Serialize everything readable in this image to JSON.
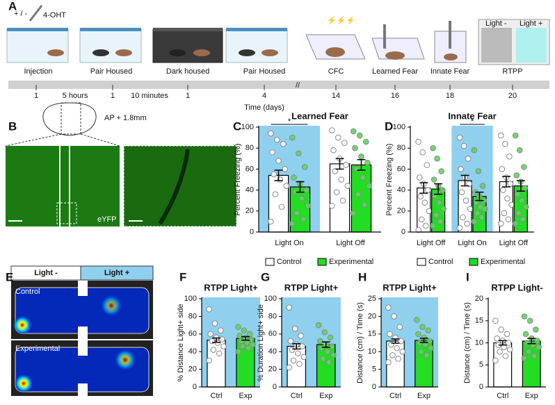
{
  "panel_labels": [
    "A",
    "B",
    "C",
    "D",
    "E",
    "F",
    "G",
    "H",
    "I"
  ],
  "timeline": {
    "injection_label": "+ / -",
    "drug": "4-OHT",
    "stages": [
      "Injection",
      "Pair Housed",
      "Dark housed",
      "Pair Housed",
      "CFC",
      "Learned Fear",
      "Innate Fear",
      "RTPP"
    ],
    "rtpp_light_minus": "Light -",
    "rtpp_light_plus": "Light +",
    "ticks": [
      "1",
      "5 hours",
      "1",
      "10 minutes",
      "1",
      "4",
      "14",
      "16",
      "18",
      "20"
    ],
    "axis_label": "Time (days)"
  },
  "histology": {
    "coordinate": "AP + 1.8mm",
    "stain": "eYFP"
  },
  "heatmap": {
    "light_minus": "Light -",
    "light_plus": "Light +",
    "groups": [
      "Control",
      "Experimental"
    ]
  },
  "chart_data": [
    {
      "type": "grouped-bar",
      "title": "Learned Fear",
      "ylabel": "Percent Freezing (%)",
      "categories": [
        "Light On",
        "Light Off"
      ],
      "ylim": [
        0,
        100
      ],
      "yticks": [
        0,
        20,
        40,
        60,
        80,
        100
      ],
      "highlight": [
        0
      ],
      "background": "#8fd0ee",
      "annotations": [
        {
          "text": "*",
          "category": 0
        }
      ],
      "series": [
        {
          "name": "Control",
          "color": "#ffffff",
          "values": [
            54,
            65
          ],
          "errors": [
            5,
            5
          ],
          "points": [
            [
              94,
              88,
              84,
              76,
              68,
              60,
              55,
              50,
              44,
              36,
              24,
              10
            ],
            [
              97,
              90,
              85,
              78,
              70,
              64,
              58,
              50,
              44,
              38,
              30,
              25
            ]
          ]
        },
        {
          "name": "Experimental",
          "color": "#22dd22",
          "values": [
            43,
            64
          ],
          "errors": [
            5,
            5
          ],
          "points": [
            [
              90,
              75,
              62,
              52,
              46,
              40,
              38,
              32,
              25,
              18,
              12,
              8
            ],
            [
              96,
              92,
              86,
              80,
              72,
              66,
              60,
              52,
              44,
              36,
              26,
              18
            ]
          ]
        }
      ]
    },
    {
      "type": "grouped-bar",
      "title": "Innate Fear",
      "ylabel": "Percent Freezing (%)",
      "categories": [
        "Light Off",
        "Light On",
        "Light Off"
      ],
      "ylim": [
        0,
        100
      ],
      "yticks": [
        0,
        20,
        40,
        60,
        80,
        100
      ],
      "highlight": [
        1
      ],
      "background": "#8fd0ee",
      "annotations": [
        {
          "text": "*",
          "category": 1
        }
      ],
      "series": [
        {
          "name": "Control",
          "color": "#ffffff",
          "values": [
            42,
            49,
            48
          ],
          "errors": [
            5,
            5,
            5
          ],
          "points": [
            [
              86,
              76,
              64,
              52,
              46,
              40,
              34,
              28,
              20,
              12,
              6,
              2
            ],
            [
              90,
              82,
              70,
              60,
              52,
              46,
              38,
              30,
              22,
              14,
              8,
              4
            ],
            [
              92,
              84,
              72,
              60,
              52,
              46,
              40,
              32,
              26,
              18,
              12,
              8
            ]
          ]
        },
        {
          "name": "Experimental",
          "color": "#22dd22",
          "values": [
            41,
            34,
            44
          ],
          "errors": [
            5,
            4,
            5
          ],
          "points": [
            [
              80,
              70,
              58,
              50,
              44,
              40,
              34,
              28,
              22,
              16,
              10,
              6
            ],
            [
              78,
              58,
              44,
              38,
              34,
              30,
              28,
              24,
              22,
              18,
              14,
              10
            ],
            [
              92,
              78,
              62,
              54,
              48,
              42,
              36,
              30,
              24,
              18,
              12,
              8
            ]
          ]
        }
      ]
    },
    {
      "type": "bar",
      "title": "RTPP Light+",
      "ylabel": "% Distance Light+ side",
      "categories": [
        "Ctrl",
        "Exp"
      ],
      "colors": [
        "#ffffff",
        "#22dd22"
      ],
      "ylim": [
        0,
        100
      ],
      "yticks": [
        0,
        20,
        40,
        60,
        80,
        100
      ],
      "background": "#8fd0ee",
      "values": [
        53,
        55
      ],
      "errors": [
        2.5,
        2
      ],
      "points": [
        [
          88,
          72,
          64,
          60,
          56,
          54,
          52,
          50,
          46,
          42,
          38,
          30
        ],
        [
          68,
          64,
          60,
          58,
          56,
          54,
          52,
          50,
          48,
          46,
          44,
          40
        ]
      ]
    },
    {
      "type": "bar",
      "title": "RTPP Light+",
      "ylabel": "% Duration Light+ side",
      "categories": [
        "Ctrl",
        "Exp"
      ],
      "colors": [
        "#ffffff",
        "#22dd22"
      ],
      "ylim": [
        0,
        100
      ],
      "yticks": [
        0,
        20,
        40,
        60,
        80,
        100
      ],
      "background": "#8fd0ee",
      "values": [
        46,
        48
      ],
      "errors": [
        3,
        3
      ],
      "points": [
        [
          90,
          66,
          58,
          52,
          48,
          46,
          42,
          38,
          34,
          30,
          26,
          22
        ],
        [
          70,
          62,
          56,
          52,
          48,
          46,
          44,
          40,
          36,
          32,
          28
        ]
      ]
    },
    {
      "type": "bar",
      "title": "RTPP Light+",
      "ylabel": "Distance (cm) / Time (s)",
      "categories": [
        "Ctrl",
        "Exp"
      ],
      "colors": [
        "#ffffff",
        "#22dd22"
      ],
      "ylim": [
        0,
        25
      ],
      "yticks": [
        0,
        5,
        10,
        15,
        20,
        25
      ],
      "background": "#8fd0ee",
      "values": [
        13,
        13.2
      ],
      "errors": [
        0.6,
        0.6
      ],
      "points": [
        [
          22.5,
          20,
          17,
          15,
          14,
          13,
          12,
          11,
          10,
          9,
          8,
          7
        ],
        [
          19,
          17,
          16,
          15,
          14,
          13,
          12.5,
          12,
          11,
          10,
          9
        ]
      ]
    },
    {
      "type": "bar",
      "title": "RTPP Light-",
      "ylabel": "Distance (cm) / Time (s)",
      "categories": [
        "Ctrl",
        "Exp"
      ],
      "colors": [
        "#ffffff",
        "#22dd22"
      ],
      "ylim": [
        0,
        20
      ],
      "yticks": [
        0,
        5,
        10,
        15,
        20
      ],
      "values": [
        10,
        10.4
      ],
      "errors": [
        0.5,
        0.6
      ],
      "points": [
        [
          15,
          13,
          12,
          11,
          10.5,
          10,
          9.5,
          9,
          8.5,
          8,
          7,
          6
        ],
        [
          16,
          15,
          13,
          12,
          11,
          10.5,
          10,
          9.5,
          9,
          8,
          7,
          6.5
        ]
      ]
    }
  ]
}
